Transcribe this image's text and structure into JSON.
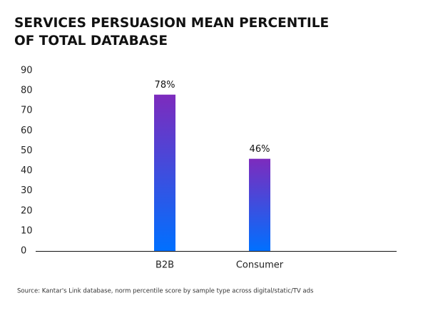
{
  "chart_data": {
    "type": "bar",
    "title": [
      "SERVICES PERSUASION MEAN PERCENTILE",
      "OF TOTAL DATABASE"
    ],
    "categories": [
      "B2B",
      "Consumer"
    ],
    "values": [
      78,
      46
    ],
    "value_labels": [
      "78%",
      "46%"
    ],
    "gradient": [
      "#7d2bbd",
      "#0070ff"
    ],
    "ylim": [
      0,
      90
    ],
    "yticks": [
      0,
      10,
      20,
      30,
      40,
      50,
      60,
      70,
      80,
      90
    ],
    "source": "Source: Kantar's Link database, norm percentile score by sample type across digital/static/TV ads"
  }
}
